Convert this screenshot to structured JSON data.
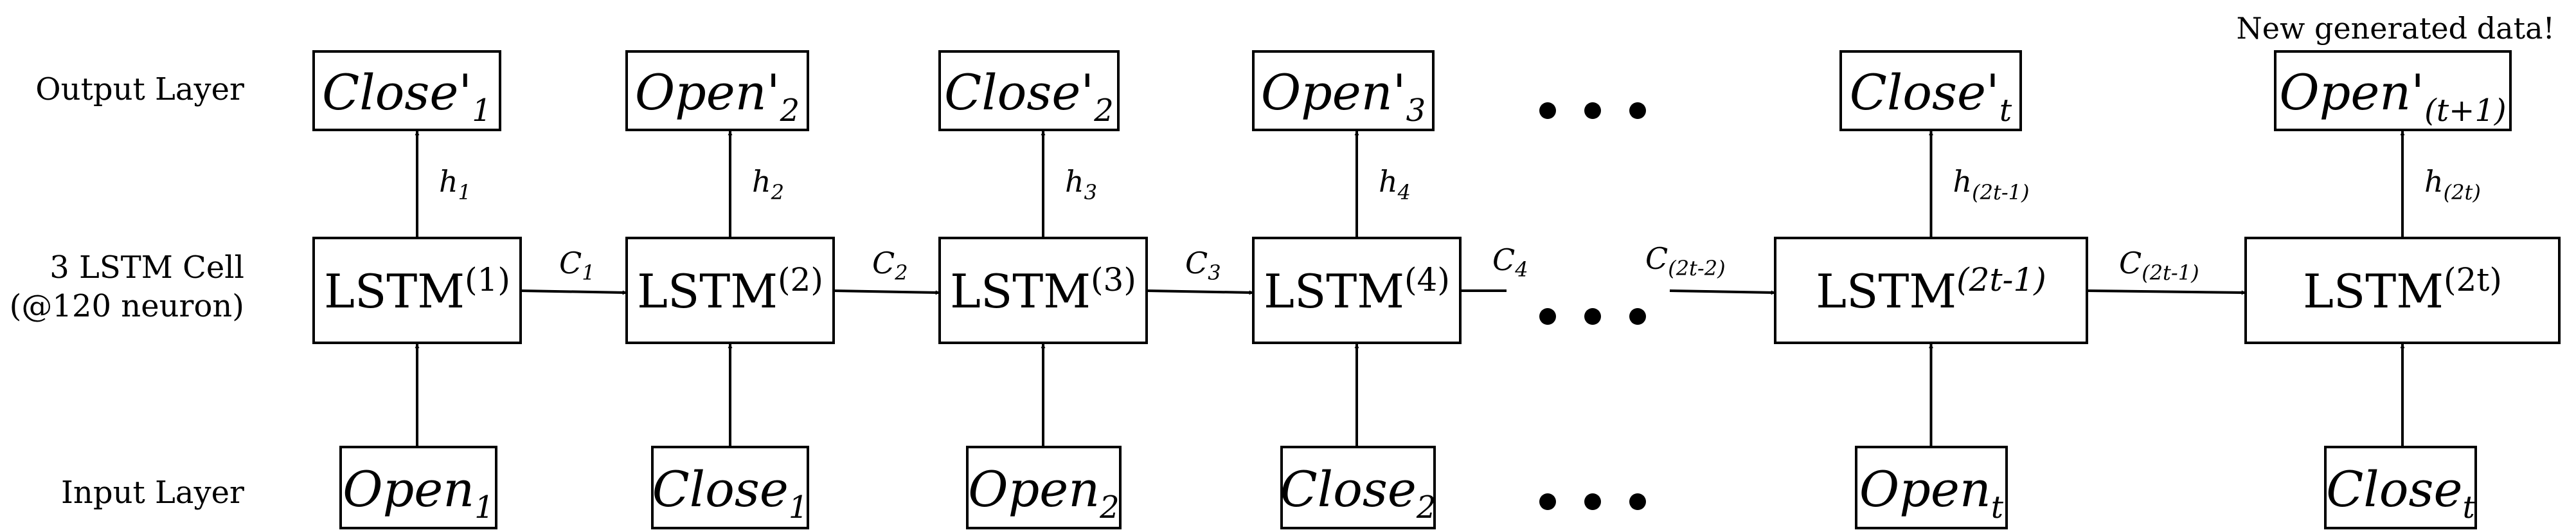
{
  "side_labels": {
    "output": "Output Layer",
    "cell_line1": "3 LSTM Cell",
    "cell_line2": "(@120 neuron)",
    "input": "Input Layer"
  },
  "note": "New generated data!",
  "cells": [
    {
      "lstm": "LSTM",
      "lstm_sup": "(1)",
      "input": "Open",
      "input_sub": "1",
      "output": "Close'",
      "output_sub": "1",
      "h": "h",
      "h_sub": "1",
      "c": "C",
      "c_sub": "1"
    },
    {
      "lstm": "LSTM",
      "lstm_sup": "(2)",
      "input": "Close",
      "input_sub": "1",
      "output": "Open'",
      "output_sub": "2",
      "h": "h",
      "h_sub": "2",
      "c": "C",
      "c_sub": "2"
    },
    {
      "lstm": "LSTM",
      "lstm_sup": "(3)",
      "input": "Open",
      "input_sub": "2",
      "output": "Close'",
      "output_sub": "2",
      "h": "h",
      "h_sub": "3",
      "c": "C",
      "c_sub": "3"
    },
    {
      "lstm": "LSTM",
      "lstm_sup": "(4)",
      "input": "Close",
      "input_sub": "2",
      "output": "Open'",
      "output_sub": "3",
      "h": "h",
      "h_sub": "4",
      "c": "C",
      "c_sub": "4"
    },
    {
      "lstm": "LSTM",
      "lstm_sup": "(2t-1)",
      "input": "Open",
      "input_sub": "t",
      "output": "Close'",
      "output_sub": "t",
      "h": "h",
      "h_sub": "(2t-1)",
      "c": "C",
      "c_sub": "(2t-1)"
    },
    {
      "lstm": "LSTM",
      "lstm_sup": "(2t)",
      "input": "Close",
      "input_sub": "t",
      "output": "Open'",
      "output_sub": "(t+1)",
      "h": "h",
      "h_sub": "(2t)"
    }
  ],
  "c_incoming": {
    "c": "C",
    "c_sub": "(2t-2)"
  }
}
